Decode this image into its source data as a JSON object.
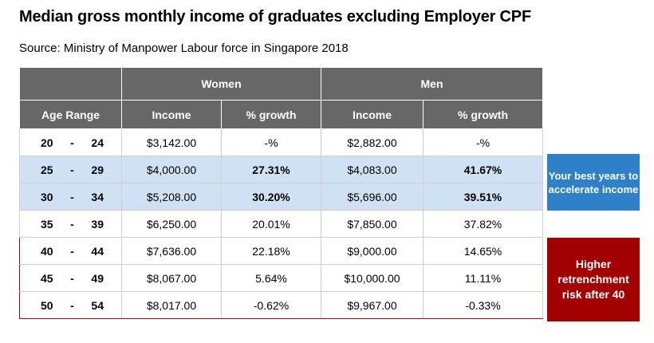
{
  "title": "Median gross monthly income of graduates excluding Employer CPF",
  "source": "Source: Ministry of Manpower Labour force in Singapore 2018",
  "headers": {
    "women": "Women",
    "men": "Men",
    "age_range": "Age Range",
    "income": "Income",
    "growth": "% growth"
  },
  "rows": [
    {
      "age_from": "20",
      "dash": "-",
      "age_to": "24",
      "women_income": "$3,142.00",
      "women_growth": "-%",
      "men_income": "$2,882.00",
      "men_growth": "-%"
    },
    {
      "age_from": "25",
      "dash": "-",
      "age_to": "29",
      "women_income": "$4,000.00",
      "women_growth": "27.31%",
      "men_income": "$4,083.00",
      "men_growth": "41.67%"
    },
    {
      "age_from": "30",
      "dash": "-",
      "age_to": "34",
      "women_income": "$5,208.00",
      "women_growth": "30.20%",
      "men_income": "$5,696.00",
      "men_growth": "39.51%"
    },
    {
      "age_from": "35",
      "dash": "-",
      "age_to": "39",
      "women_income": "$6,250.00",
      "women_growth": "20.01%",
      "men_income": "$7,850.00",
      "men_growth": "37.82%"
    },
    {
      "age_from": "40",
      "dash": "-",
      "age_to": "44",
      "women_income": "$7,636.00",
      "women_growth": "22.18%",
      "men_income": "$9,000.00",
      "men_growth": "14.65%"
    },
    {
      "age_from": "45",
      "dash": "-",
      "age_to": "49",
      "women_income": "$8,067.00",
      "women_growth": "5.64%",
      "men_income": "$10,000.00",
      "men_growth": "11.11%"
    },
    {
      "age_from": "50",
      "dash": "-",
      "age_to": "54",
      "women_income": "$8,017.00",
      "women_growth": "-0.62%",
      "men_income": "$9,967.00",
      "men_growth": "-0.33%"
    }
  ],
  "callouts": {
    "best_years": "Your best years to accelerate income",
    "retrenchment": "Higher retrenchment risk after 40"
  },
  "colors": {
    "header_bg": "#676767",
    "highlight_row": "#cfe1f2",
    "callout_blue": "#2e80c8",
    "callout_red": "#a30000"
  }
}
